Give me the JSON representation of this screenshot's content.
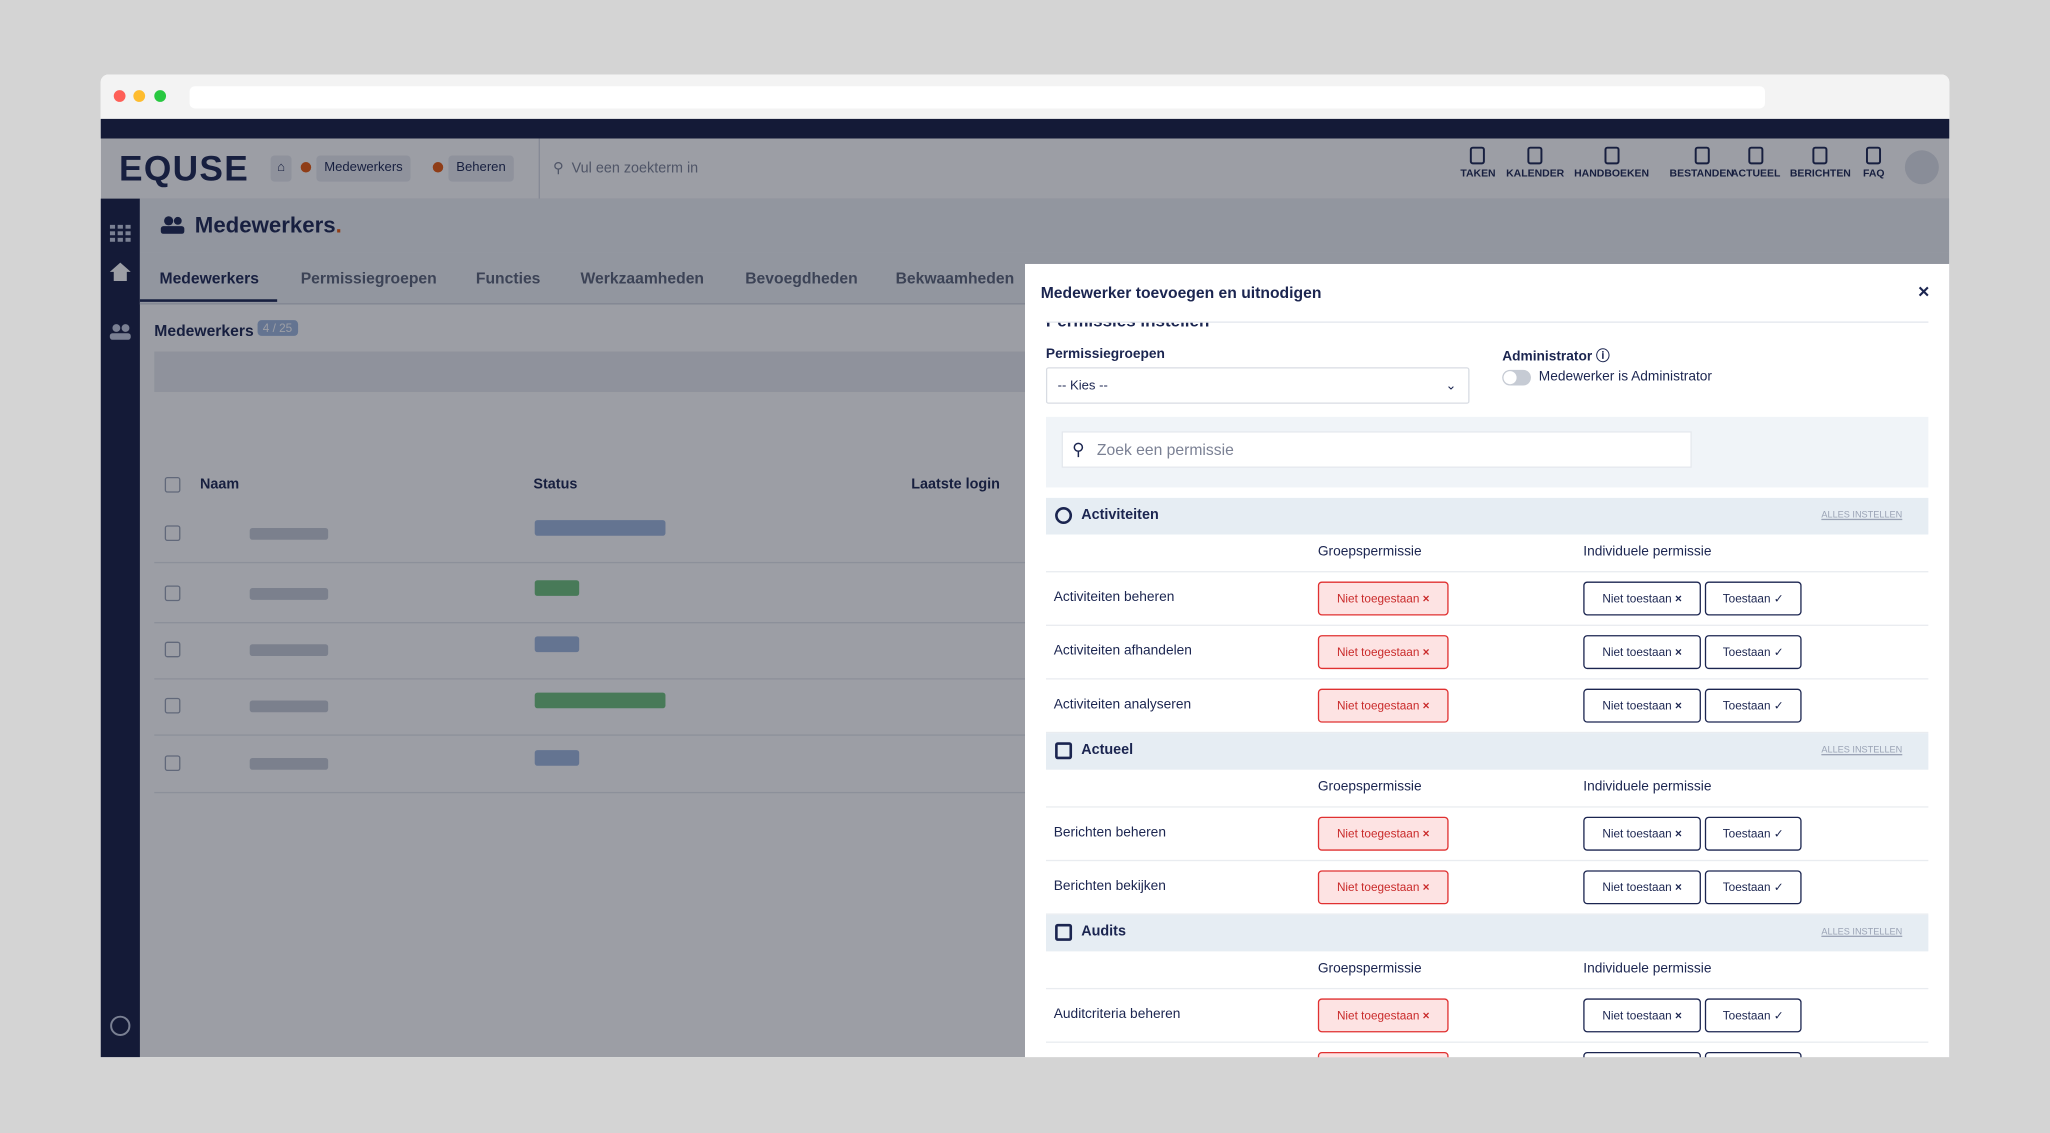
{
  "header": {
    "logo": "EQUSE",
    "breadcrumb": [
      "Medewerkers",
      "Beheren"
    ],
    "search_placeholder": "Vul een zoekterm in",
    "nav": [
      "TAKEN",
      "KALENDER",
      "HANDBOEKEN",
      "BESTANDEN",
      "ACTUEEL",
      "BERICHTEN",
      "FAQ"
    ]
  },
  "page": {
    "title": "Medewerkers",
    "tabs": [
      "Medewerkers",
      "Permissiegroepen",
      "Functies",
      "Werkzaamheden",
      "Bevoegdheden",
      "Bekwaamheden"
    ],
    "list_title": "Medewerkers",
    "count": "4 / 25",
    "columns": [
      "Naam",
      "Status",
      "Laatste login"
    ]
  },
  "modal": {
    "title": "Medewerker toevoegen en uitnodigen",
    "section": "Permissies instellen",
    "groups_label": "Permissiegroepen",
    "groups_placeholder": "-- Kies --",
    "admin_label": "Administrator",
    "admin_toggle": "Medewerker is Administrator",
    "search_placeholder": "Zoek een permissie",
    "set_all": "ALLES INSTELLEN",
    "group_col": "Groepspermissie",
    "individual_col": "Individuele permissie",
    "denied": "Niet toegestaan",
    "deny": "Niet toestaan",
    "allow": "Toestaan",
    "categories": [
      {
        "name": "Activiteiten",
        "permissions": [
          "Activiteiten beheren",
          "Activiteiten afhandelen",
          "Activiteiten analyseren"
        ]
      },
      {
        "name": "Actueel",
        "permissions": [
          "Berichten beheren",
          "Berichten bekijken"
        ]
      },
      {
        "name": "Audits",
        "permissions": [
          "Auditcriteria beheren"
        ]
      }
    ]
  }
}
